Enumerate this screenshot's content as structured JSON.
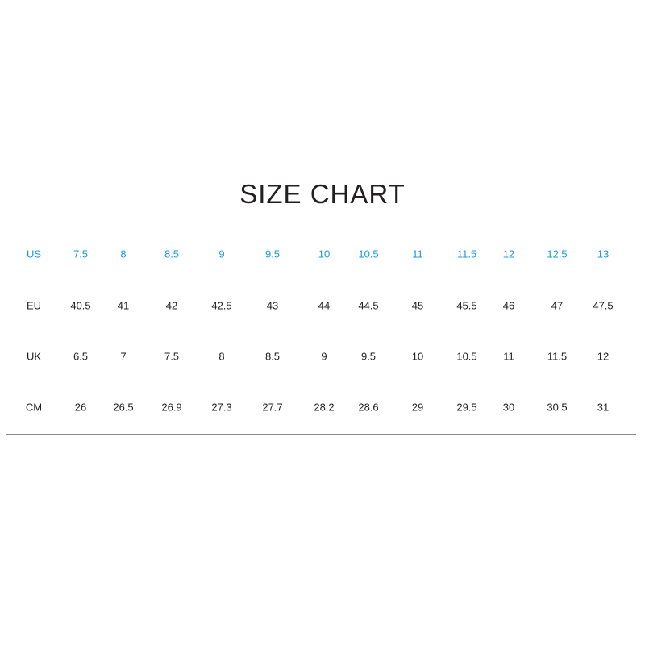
{
  "title": "SIZE CHART",
  "colors": {
    "header_row": "#1a9ae6",
    "text": "#231f20",
    "rule": "#8a8a8a"
  },
  "rows": [
    {
      "label": "US",
      "values": [
        "7.5",
        "8",
        "8.5",
        "9",
        "9.5",
        "10",
        "10.5",
        "11",
        "11.5",
        "12",
        "12.5",
        "13"
      ]
    },
    {
      "label": "EU",
      "values": [
        "40.5",
        "41",
        "42",
        "42.5",
        "43",
        "44",
        "44.5",
        "45",
        "45.5",
        "46",
        "47",
        "47.5"
      ]
    },
    {
      "label": "UK",
      "values": [
        "6.5",
        "7",
        "7.5",
        "8",
        "8.5",
        "9",
        "9.5",
        "10",
        "10.5",
        "11",
        "11.5",
        "12"
      ]
    },
    {
      "label": "CM",
      "values": [
        "26",
        "26.5",
        "26.9",
        "27.3",
        "27.7",
        "28.2",
        "28.6",
        "29",
        "29.5",
        "30",
        "30.5",
        "31"
      ]
    }
  ]
}
